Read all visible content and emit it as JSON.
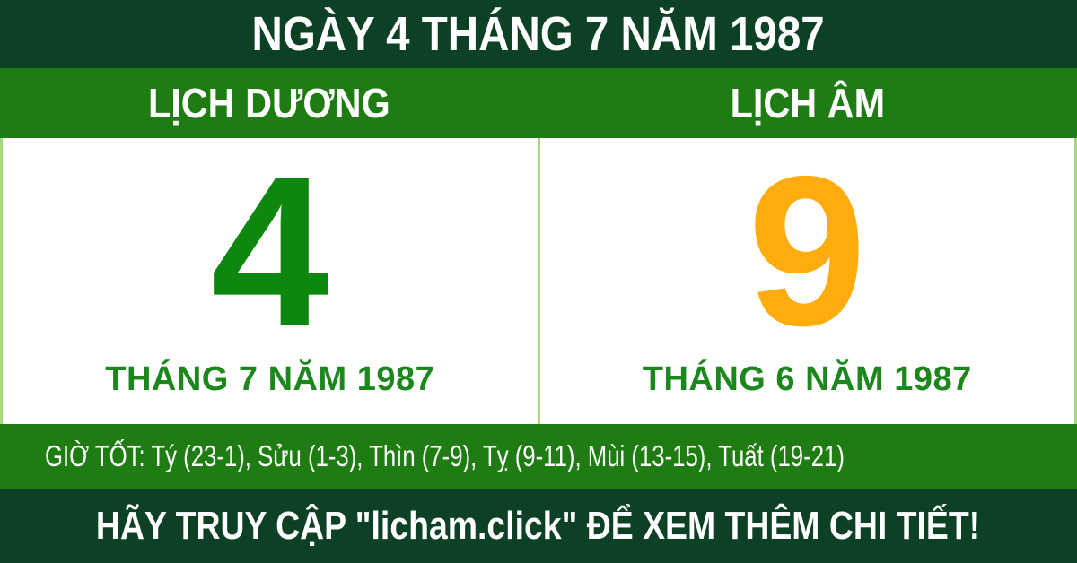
{
  "header": {
    "title": "NGÀY 4 THÁNG 7 NĂM 1987"
  },
  "columns": {
    "solar": {
      "header": "LỊCH DƯƠNG",
      "day": "4",
      "month_label": "THÁNG 7 NĂM 1987"
    },
    "lunar": {
      "header": "LỊCH ÂM",
      "day": "9",
      "month_label": "THÁNG 6 NĂM 1987"
    }
  },
  "good_hours": {
    "text": "GIỜ TỐT: Tý (23-1), Sửu (1-3), Thìn (7-9), Tỵ (9-11), Mùi (13-15), Tuất (19-21)"
  },
  "footer": {
    "cta": "HÃY TRUY CẬP \"licham.click\" ĐỂ XEM THÊM CHI TIẾT!"
  },
  "colors": {
    "dark_green": "#0d4126",
    "green": "#1e7c12",
    "digit_green": "#0d870d",
    "text_green": "#1c871c",
    "orange": "#ffac0c",
    "pale_green_border": "#a9d87c",
    "white_panel": "#ffffff"
  }
}
